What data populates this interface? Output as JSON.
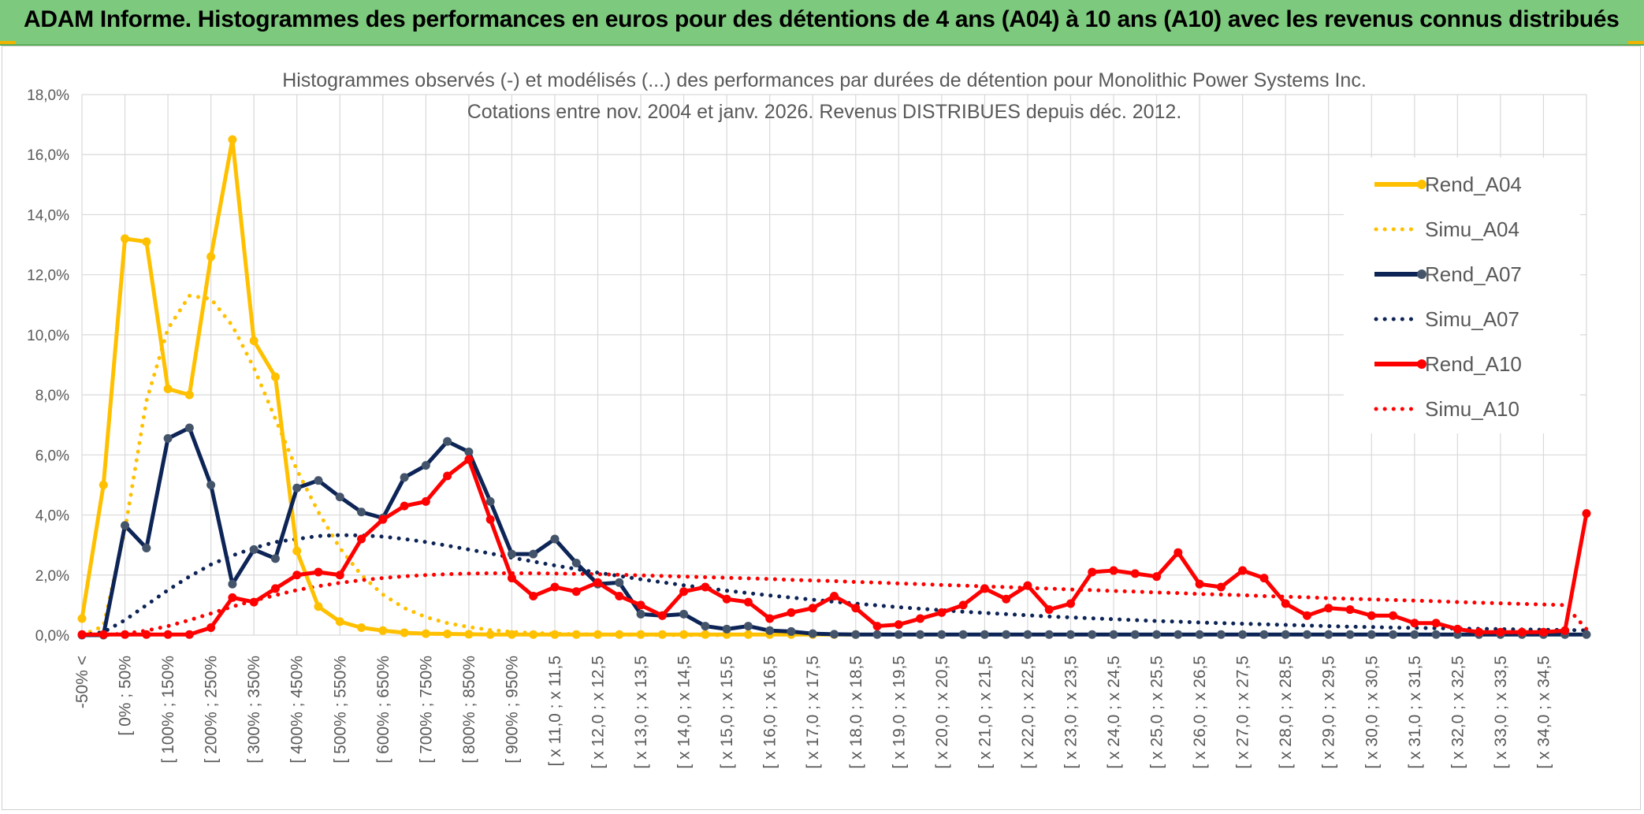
{
  "header": {
    "title": "ADAM Informe. Histogrammes des performances en euros pour des détentions de 4 ans (A04) à 10 ans (A10) avec les revenus connus distribués"
  },
  "colors": {
    "banner": "#7dc97d",
    "a04": "#ffc000",
    "a07": "#0d2456",
    "a10": "#ff0000",
    "grid": "#d9d9d9",
    "marker_a07": "#44546a"
  },
  "chart_data": {
    "type": "line",
    "title": "Histogrammes observés (-) et modélisés (...) des performances par durées de détention pour Monolithic Power Systems Inc.",
    "subtitle": "Cotations entre nov. 2004 et janv. 2026. Revenus DISTRIBUES depuis déc. 2012.",
    "ylim": [
      0,
      18
    ],
    "yticks": [
      "0,0%",
      "2,0%",
      "4,0%",
      "6,0%",
      "8,0%",
      "10,0%",
      "12,0%",
      "14,0%",
      "16,0%",
      "18,0%"
    ],
    "xtick_labels": [
      "-50% <",
      "[ 0% ; 50%",
      "[ 100% ; 150%",
      "[ 200% ; 250%",
      "[ 300% ; 350%",
      "[ 400% ; 450%",
      "[ 500% ; 550%",
      "[ 600% ; 650%",
      "[ 700% ; 750%",
      "[ 800% ; 850%",
      "[ 900% ; 950%",
      "[ x 11,0 ; x 11,5",
      "[ x 12,0 ; x 12,5",
      "[ x 13,0 ; x 13,5",
      "[ x 14,0 ; x 14,5",
      "[ x 15,0 ; x 15,5",
      "[ x 16,0 ; x 16,5",
      "[ x 17,0 ; x 17,5",
      "[ x 18,0 ; x 18,5",
      "[ x 19,0 ; x 19,5",
      "[ x 20,0 ; x 20,5",
      "[ x 21,0 ; x 21,5",
      "[ x 22,0 ; x 22,5",
      "[ x 23,0 ; x 23,5",
      "[ x 24,0 ; x 24,5",
      "[ x 25,0 ; x 25,5",
      "[ x 26,0 ; x 26,5",
      "[ x 27,0 ; x 27,5",
      "[ x 28,0 ; x 28,5",
      "[ x 29,0 ; x 29,5",
      "[ x 30,0 ; x 30,5",
      "[ x 31,0 ; x 31,5",
      "[ x 32,0 ; x 32,5",
      "[ x 33,0 ; x 33,5",
      "[ x 34,0 ; x 34,5"
    ],
    "n_points": 71,
    "series": [
      {
        "name": "Rend_A04",
        "style": "solid",
        "color": "#ffc000",
        "values": [
          0.55,
          5.0,
          13.2,
          13.1,
          8.2,
          8.0,
          12.6,
          16.5,
          9.8,
          8.6,
          2.8,
          0.95,
          0.45,
          0.25,
          0.15,
          0.08,
          0.05,
          0.04,
          0.03,
          0.02,
          0.02,
          0.02,
          0.02,
          0.02,
          0.02,
          0.02,
          0.02,
          0.02,
          0.02,
          0.02,
          0.02,
          0.02,
          0.02,
          0.02,
          0.02,
          0.02,
          0.02
        ]
      },
      {
        "name": "Simu_A04",
        "style": "dotted",
        "color": "#ffc000",
        "values": [
          0.0,
          0.3,
          3.5,
          7.8,
          10.2,
          11.3,
          11.2,
          10.3,
          8.9,
          7.2,
          5.5,
          4.1,
          2.9,
          2.0,
          1.35,
          0.9,
          0.6,
          0.4,
          0.27,
          0.17,
          0.11,
          0.07,
          0.05,
          0.03,
          0.02,
          0.01,
          0.01,
          0.0,
          0.0,
          0.0,
          0.0
        ]
      },
      {
        "name": "Rend_A07",
        "style": "solid",
        "color": "#0d2456",
        "values": [
          0.0,
          0.0,
          3.65,
          2.9,
          6.55,
          6.9,
          5.0,
          1.7,
          2.85,
          2.55,
          4.9,
          5.15,
          4.6,
          4.1,
          3.9,
          5.25,
          5.65,
          6.45,
          6.1,
          4.45,
          2.7,
          2.7,
          3.2,
          2.4,
          1.7,
          1.75,
          0.7,
          0.65,
          0.7,
          0.3,
          0.2,
          0.3,
          0.15,
          0.12,
          0.05,
          0.03,
          0.02,
          0.02,
          0.02,
          0.02,
          0.02,
          0.02,
          0.02,
          0.02,
          0.02,
          0.02,
          0.02,
          0.02,
          0.02,
          0.02,
          0.02,
          0.02,
          0.02,
          0.02,
          0.02,
          0.02,
          0.02,
          0.02,
          0.02,
          0.02,
          0.02,
          0.02,
          0.02,
          0.02,
          0.02,
          0.02,
          0.02,
          0.02,
          0.02,
          0.02,
          0.02
        ]
      },
      {
        "name": "Simu_A07",
        "style": "dotted",
        "color": "#0d2456",
        "values": [
          0.0,
          0.1,
          0.5,
          1.0,
          1.5,
          1.95,
          2.35,
          2.65,
          2.9,
          3.1,
          3.2,
          3.3,
          3.33,
          3.32,
          3.28,
          3.2,
          3.1,
          2.98,
          2.85,
          2.72,
          2.58,
          2.45,
          2.32,
          2.2,
          2.08,
          1.97,
          1.86,
          1.76,
          1.66,
          1.57,
          1.48,
          1.4,
          1.32,
          1.25,
          1.18,
          1.11,
          1.05,
          0.99,
          0.93,
          0.88,
          0.83,
          0.78,
          0.74,
          0.7,
          0.66,
          0.62,
          0.59,
          0.56,
          0.53,
          0.5,
          0.47,
          0.45,
          0.42,
          0.4,
          0.38,
          0.36,
          0.34,
          0.32,
          0.3,
          0.28,
          0.27,
          0.25,
          0.24,
          0.23,
          0.22,
          0.21,
          0.2,
          0.19,
          0.18,
          0.17,
          0.16
        ]
      },
      {
        "name": "Rend_A10",
        "style": "solid",
        "color": "#ff0000",
        "values": [
          0.02,
          0.02,
          0.02,
          0.02,
          0.02,
          0.02,
          0.25,
          1.25,
          1.1,
          1.55,
          2.0,
          2.1,
          2.0,
          3.2,
          3.85,
          4.3,
          4.45,
          5.3,
          5.85,
          3.85,
          1.9,
          1.3,
          1.6,
          1.45,
          1.75,
          1.3,
          1.0,
          0.65,
          1.45,
          1.6,
          1.2,
          1.1,
          0.55,
          0.75,
          0.9,
          1.3,
          0.9,
          0.3,
          0.35,
          0.55,
          0.75,
          1.0,
          1.55,
          1.2,
          1.65,
          0.85,
          1.05,
          2.1,
          2.15,
          2.05,
          1.95,
          2.75,
          1.7,
          1.6,
          2.15,
          1.9,
          1.05,
          0.65,
          0.9,
          0.85,
          0.65,
          0.65,
          0.4,
          0.4,
          0.2,
          0.1,
          0.1,
          0.1,
          0.1,
          0.15,
          4.05
        ]
      },
      {
        "name": "Simu_A10",
        "style": "dotted",
        "color": "#ff0000",
        "values": [
          0.0,
          0.0,
          0.05,
          0.15,
          0.3,
          0.5,
          0.72,
          0.95,
          1.15,
          1.33,
          1.5,
          1.63,
          1.74,
          1.83,
          1.9,
          1.96,
          2.0,
          2.03,
          2.05,
          2.06,
          2.06,
          2.06,
          2.05,
          2.04,
          2.03,
          2.01,
          1.99,
          1.97,
          1.95,
          1.93,
          1.91,
          1.89,
          1.87,
          1.84,
          1.82,
          1.8,
          1.77,
          1.75,
          1.72,
          1.7,
          1.67,
          1.65,
          1.62,
          1.6,
          1.57,
          1.55,
          1.52,
          1.5,
          1.47,
          1.45,
          1.42,
          1.4,
          1.37,
          1.35,
          1.33,
          1.3,
          1.28,
          1.26,
          1.23,
          1.21,
          1.19,
          1.17,
          1.15,
          1.13,
          1.1,
          1.08,
          1.06,
          1.04,
          1.02,
          1.0,
          0.2
        ]
      }
    ]
  }
}
